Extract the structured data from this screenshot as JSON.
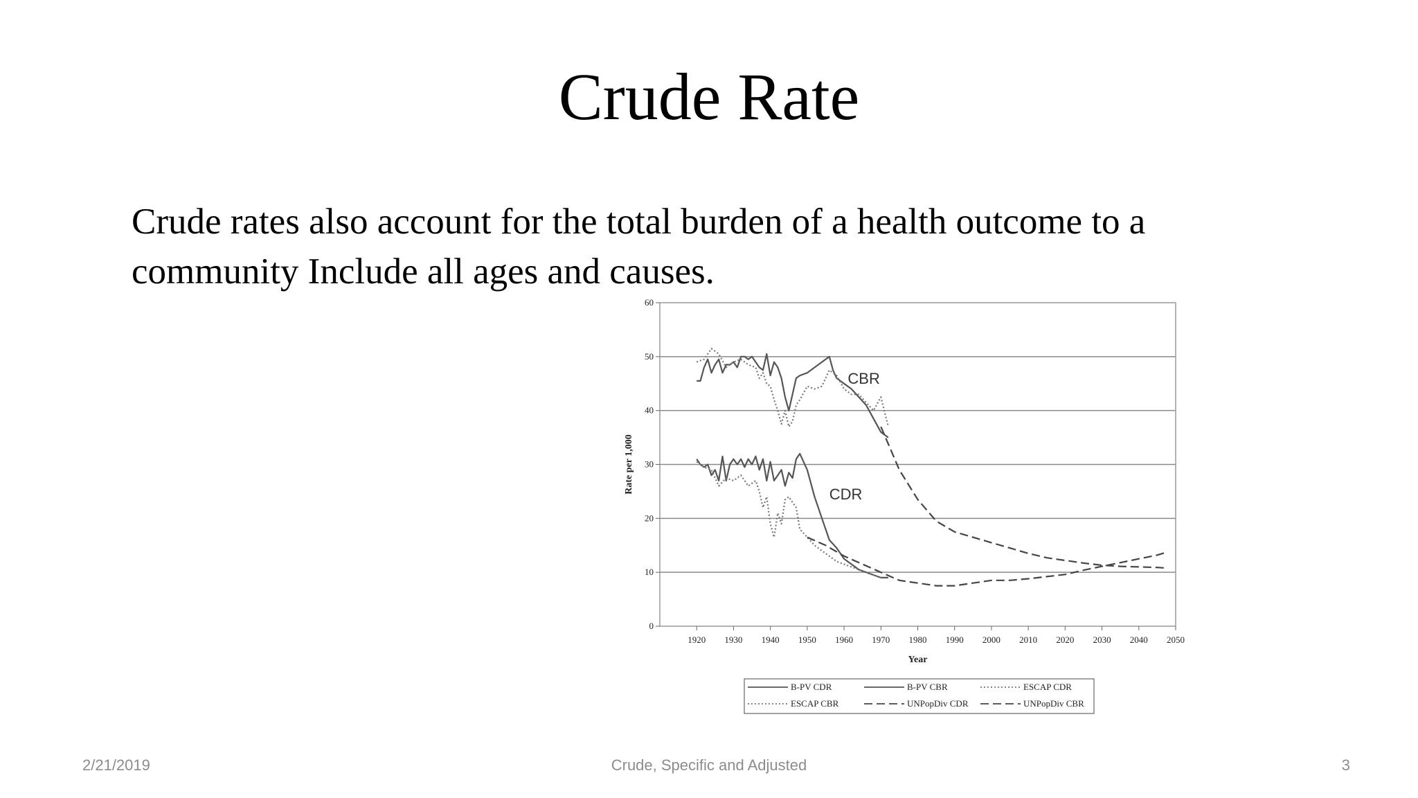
{
  "slide": {
    "title": "Crude Rate",
    "body": "Crude rates also account for the total burden of a health outcome to a community Include all ages and causes.",
    "footer_date": "2/21/2019",
    "footer_center": "Crude, Specific and Adjusted",
    "footer_page": "3"
  },
  "chart_data": {
    "type": "line",
    "title": "",
    "xlabel": "Year",
    "ylabel": "Rate per 1,000",
    "xlim": [
      1910,
      2050
    ],
    "ylim": [
      0,
      60
    ],
    "x_ticks": [
      1920,
      1930,
      1940,
      1950,
      1960,
      1970,
      1980,
      1990,
      2000,
      2010,
      2020,
      2030,
      2040,
      2050
    ],
    "y_ticks": [
      0,
      10,
      20,
      30,
      40,
      50,
      60
    ],
    "grid": true,
    "legend_position": "bottom",
    "annotations": [
      {
        "text": "CBR",
        "x": 1961,
        "y": 45
      },
      {
        "text": "CDR",
        "x": 1956,
        "y": 23.5
      }
    ],
    "series": [
      {
        "name": "B-PV CDR",
        "style": "solid",
        "color": "#555555",
        "x": [
          1920,
          1921,
          1922,
          1923,
          1924,
          1925,
          1926,
          1927,
          1928,
          1929,
          1930,
          1931,
          1932,
          1933,
          1934,
          1935,
          1936,
          1937,
          1938,
          1939,
          1940,
          1941,
          1942,
          1943,
          1944,
          1945,
          1946,
          1947,
          1948,
          1950,
          1952,
          1954,
          1956,
          1958,
          1960,
          1962,
          1964,
          1966,
          1968,
          1970,
          1972
        ],
        "y": [
          31,
          30,
          29.5,
          30,
          28,
          29,
          27,
          31.5,
          27,
          30,
          31,
          30,
          31,
          29.5,
          31,
          30,
          31.5,
          29,
          31,
          27,
          30.5,
          27,
          28,
          29,
          26,
          28.5,
          27.5,
          31,
          32,
          29,
          24,
          20,
          16,
          14.5,
          12.5,
          11.5,
          10.5,
          10,
          9.5,
          9,
          9
        ]
      },
      {
        "name": "B-PV CBR",
        "style": "solid",
        "color": "#555555",
        "x": [
          1920,
          1921,
          1922,
          1923,
          1924,
          1925,
          1926,
          1927,
          1928,
          1929,
          1930,
          1931,
          1932,
          1933,
          1934,
          1935,
          1936,
          1937,
          1938,
          1939,
          1940,
          1941,
          1942,
          1943,
          1944,
          1945,
          1946,
          1947,
          1948,
          1950,
          1952,
          1954,
          1956,
          1957,
          1958,
          1960,
          1962,
          1964,
          1966,
          1968,
          1970,
          1972
        ],
        "y": [
          45.5,
          45.5,
          48,
          49.5,
          47,
          48.5,
          49.5,
          47,
          48.5,
          48.5,
          49,
          48,
          50,
          50,
          49.5,
          50,
          49,
          48,
          47.5,
          50.5,
          46.5,
          49,
          48,
          46,
          42.5,
          40,
          43,
          46,
          46.5,
          47,
          48,
          49,
          50,
          47.5,
          46,
          45,
          44,
          42.5,
          41,
          38.5,
          36,
          35
        ]
      },
      {
        "name": "ESCAP CDR",
        "style": "dotted",
        "color": "#777777",
        "x": [
          1920,
          1922,
          1924,
          1926,
          1928,
          1930,
          1932,
          1934,
          1936,
          1937,
          1938,
          1939,
          1940,
          1941,
          1942,
          1943,
          1944,
          1945,
          1946,
          1947,
          1948,
          1950,
          1952,
          1954,
          1956,
          1958,
          1960,
          1962,
          1964,
          1966,
          1968,
          1970
        ],
        "y": [
          30.5,
          29.5,
          29,
          26,
          27.5,
          27,
          28,
          26,
          27,
          25,
          22,
          24,
          19,
          16.5,
          21,
          19,
          23.5,
          24,
          23,
          22,
          18,
          16.5,
          15,
          14,
          13,
          12,
          11.5,
          11,
          10.5,
          10,
          9.5,
          9
        ]
      },
      {
        "name": "ESCAP CBR",
        "style": "dotted",
        "color": "#777777",
        "x": [
          1920,
          1922,
          1924,
          1926,
          1928,
          1930,
          1932,
          1934,
          1936,
          1937,
          1938,
          1939,
          1940,
          1941,
          1942,
          1943,
          1944,
          1945,
          1946,
          1947,
          1948,
          1950,
          1952,
          1954,
          1956,
          1958,
          1960,
          1962,
          1964,
          1966,
          1968,
          1970,
          1972
        ],
        "y": [
          49,
          49.5,
          51.5,
          50.5,
          48,
          49,
          49.5,
          48.5,
          48,
          46,
          47,
          45,
          44.5,
          42,
          40,
          37.5,
          40,
          37,
          38,
          41,
          42,
          44.5,
          44,
          44.5,
          47.5,
          46.5,
          44,
          43,
          43,
          41.5,
          40,
          42.5,
          37
        ]
      },
      {
        "name": "UNPopDiv CDR",
        "style": "dashed",
        "color": "#444444",
        "x": [
          1950,
          1955,
          1960,
          1965,
          1970,
          1975,
          1980,
          1985,
          1990,
          1995,
          2000,
          2005,
          2010,
          2015,
          2020,
          2025,
          2030,
          2035,
          2040,
          2045,
          2047
        ],
        "y": [
          16.5,
          15,
          13,
          11.5,
          10,
          8.5,
          8,
          7.5,
          7.5,
          8,
          8.5,
          8.5,
          8.8,
          9.2,
          9.6,
          10.4,
          11.1,
          11.8,
          12.5,
          13.2,
          13.6
        ]
      },
      {
        "name": "UNPopDiv CBR",
        "style": "dashed",
        "color": "#444444",
        "x": [
          1970,
          1975,
          1980,
          1985,
          1990,
          1995,
          2000,
          2005,
          2010,
          2015,
          2020,
          2025,
          2030,
          2035,
          2040,
          2045,
          2047
        ],
        "y": [
          37,
          29,
          23.5,
          19.5,
          17.5,
          16.5,
          15.5,
          14.5,
          13.5,
          12.7,
          12.2,
          11.7,
          11.3,
          11.1,
          11,
          10.9,
          10.8
        ]
      }
    ]
  }
}
